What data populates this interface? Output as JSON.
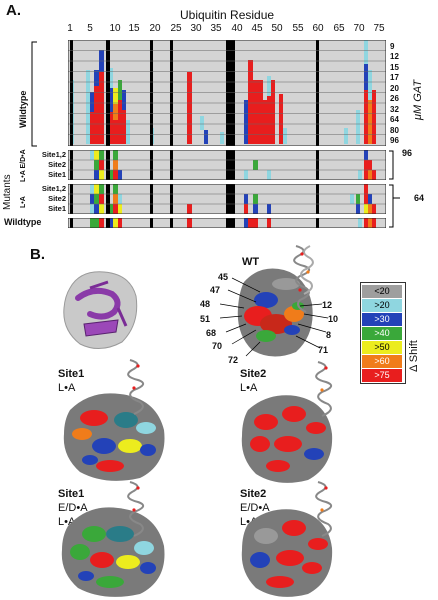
{
  "panel_a": {
    "letter": "A.",
    "axis_title": "Ubiquitin Residue",
    "ticks": [
      "1",
      "5",
      "10",
      "15",
      "20",
      "25",
      "30",
      "35",
      "40",
      "45",
      "50",
      "55",
      "60",
      "65",
      "70",
      "75"
    ],
    "y_axis_title": "μM GAT",
    "wildtype_label": "Wildtype",
    "concentrations": [
      "9",
      "12",
      "15",
      "17",
      "20",
      "26",
      "32",
      "64",
      "80",
      "96"
    ],
    "mutants_label": "Mutants",
    "group_labels": [
      "L•A E/D•A",
      "L•A"
    ],
    "mutant_rows": [
      "Site1,2",
      "Site2",
      "Site1",
      "Site1,2",
      "Site2",
      "Site1"
    ],
    "bracket_values": [
      "96",
      "64"
    ],
    "bottom_row_label": "Wildtype"
  },
  "panel_b": {
    "letter": "B.",
    "wt_label": "WT",
    "residue_labels": [
      "45",
      "47",
      "48",
      "51",
      "68",
      "70",
      "72",
      "12",
      "10",
      "8",
      "71"
    ],
    "structures": [
      {
        "title": "Site1",
        "sub1": "L•A",
        "sub2": ""
      },
      {
        "title": "Site2",
        "sub1": "L•A",
        "sub2": ""
      },
      {
        "title": "Site1",
        "sub1": "E/D•A",
        "sub2": "L•A"
      },
      {
        "title": "Site2",
        "sub1": "E/D•A",
        "sub2": "L•A"
      }
    ],
    "legend_title": "Δ Shift",
    "legend": [
      {
        "label": "<20",
        "color": "#9e9e9e"
      },
      {
        "label": ">20",
        "color": "#8fd6e0"
      },
      {
        "label": ">30",
        "color": "#2342b8"
      },
      {
        "label": ">40",
        "color": "#3aa83a"
      },
      {
        "label": ">50",
        "color": "#ecec1e"
      },
      {
        "label": ">60",
        "color": "#f07c1a"
      },
      {
        "label": ">75",
        "color": "#e81e1e"
      }
    ]
  }
}
